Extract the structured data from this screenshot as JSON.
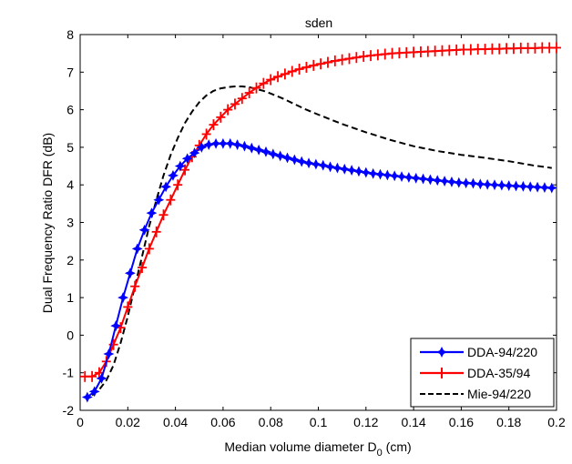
{
  "chart_data": {
    "type": "line",
    "title": "sden",
    "xlabel": "Median volume diameter D",
    "xlabel_subscript": "0",
    "xlabel_unit": " (cm)",
    "ylabel": "Dual Frequency Ratio DFR (dB)",
    "xlim": [
      0,
      0.2
    ],
    "ylim": [
      -2,
      8
    ],
    "xticks": [
      0,
      0.02,
      0.04,
      0.06,
      0.08,
      0.1,
      0.12,
      0.14,
      0.16,
      0.18,
      0.2
    ],
    "xtick_labels": [
      "0",
      "0.02",
      "0.04",
      "0.06",
      "0.08",
      "0.1",
      "0.12",
      "0.14",
      "0.16",
      "0.18",
      "0.2"
    ],
    "yticks": [
      -2,
      -1,
      0,
      1,
      2,
      3,
      4,
      5,
      6,
      7,
      8
    ],
    "ytick_labels": [
      "-2",
      "-1",
      "0",
      "1",
      "2",
      "3",
      "4",
      "5",
      "6",
      "7",
      "8"
    ],
    "grid": false,
    "legend_position": "bottom-right",
    "series": [
      {
        "name": "DDA-94/220",
        "color": "#0000ff",
        "style": "solid",
        "marker": "star",
        "x": [
          0.003,
          0.006,
          0.009,
          0.012,
          0.015,
          0.018,
          0.021,
          0.024,
          0.027,
          0.03,
          0.033,
          0.036,
          0.039,
          0.042,
          0.045,
          0.048,
          0.051,
          0.054,
          0.057,
          0.06,
          0.063,
          0.066,
          0.069,
          0.072,
          0.075,
          0.078,
          0.081,
          0.084,
          0.087,
          0.09,
          0.093,
          0.096,
          0.099,
          0.102,
          0.105,
          0.108,
          0.111,
          0.114,
          0.117,
          0.12,
          0.123,
          0.126,
          0.129,
          0.132,
          0.135,
          0.138,
          0.141,
          0.144,
          0.147,
          0.15,
          0.153,
          0.156,
          0.159,
          0.162,
          0.165,
          0.168,
          0.171,
          0.174,
          0.177,
          0.18,
          0.183,
          0.186,
          0.189,
          0.192,
          0.195,
          0.198
        ],
        "y": [
          -1.65,
          -1.5,
          -1.15,
          -0.5,
          0.25,
          1.0,
          1.65,
          2.3,
          2.8,
          3.25,
          3.6,
          3.95,
          4.25,
          4.5,
          4.7,
          4.85,
          5.0,
          5.07,
          5.1,
          5.1,
          5.1,
          5.07,
          5.03,
          4.98,
          4.93,
          4.88,
          4.82,
          4.77,
          4.72,
          4.67,
          4.62,
          4.58,
          4.55,
          4.52,
          4.48,
          4.45,
          4.42,
          4.39,
          4.36,
          4.33,
          4.3,
          4.28,
          4.26,
          4.24,
          4.22,
          4.2,
          4.18,
          4.16,
          4.14,
          4.12,
          4.1,
          4.08,
          4.06,
          4.05,
          4.04,
          4.02,
          4.01,
          4.0,
          3.99,
          3.98,
          3.97,
          3.96,
          3.95,
          3.94,
          3.93,
          3.92
        ]
      },
      {
        "name": "DDA-35/94",
        "color": "#ff0000",
        "style": "solid",
        "marker": "plus",
        "x": [
          0.002,
          0.005,
          0.008,
          0.011,
          0.014,
          0.017,
          0.02,
          0.023,
          0.026,
          0.029,
          0.032,
          0.035,
          0.038,
          0.041,
          0.044,
          0.047,
          0.05,
          0.053,
          0.056,
          0.059,
          0.062,
          0.065,
          0.068,
          0.071,
          0.074,
          0.077,
          0.08,
          0.083,
          0.086,
          0.089,
          0.092,
          0.095,
          0.098,
          0.101,
          0.104,
          0.107,
          0.11,
          0.113,
          0.116,
          0.119,
          0.122,
          0.125,
          0.128,
          0.131,
          0.134,
          0.137,
          0.14,
          0.143,
          0.146,
          0.149,
          0.152,
          0.155,
          0.158,
          0.161,
          0.164,
          0.167,
          0.17,
          0.173,
          0.176,
          0.179,
          0.182,
          0.185,
          0.188,
          0.191,
          0.194,
          0.197,
          0.2
        ],
        "y": [
          -1.1,
          -1.1,
          -1.0,
          -0.7,
          -0.25,
          0.2,
          0.75,
          1.3,
          1.8,
          2.3,
          2.75,
          3.2,
          3.6,
          4.0,
          4.4,
          4.75,
          5.05,
          5.35,
          5.6,
          5.8,
          6.0,
          6.15,
          6.3,
          6.45,
          6.58,
          6.7,
          6.8,
          6.88,
          6.95,
          7.02,
          7.08,
          7.13,
          7.18,
          7.22,
          7.26,
          7.3,
          7.33,
          7.36,
          7.39,
          7.42,
          7.44,
          7.46,
          7.48,
          7.5,
          7.51,
          7.52,
          7.53,
          7.54,
          7.55,
          7.56,
          7.57,
          7.58,
          7.59,
          7.6,
          7.6,
          7.61,
          7.61,
          7.62,
          7.62,
          7.63,
          7.63,
          7.64,
          7.64,
          7.64,
          7.65,
          7.65,
          7.65
        ]
      },
      {
        "name": "Mie-94/220",
        "color": "#000000",
        "style": "dashed",
        "marker": "none",
        "x": [
          0.005,
          0.008,
          0.011,
          0.014,
          0.017,
          0.02,
          0.023,
          0.026,
          0.029,
          0.032,
          0.035,
          0.038,
          0.041,
          0.044,
          0.047,
          0.05,
          0.053,
          0.056,
          0.059,
          0.062,
          0.065,
          0.068,
          0.071,
          0.074,
          0.077,
          0.08,
          0.085,
          0.09,
          0.095,
          0.1,
          0.11,
          0.12,
          0.13,
          0.14,
          0.15,
          0.16,
          0.17,
          0.18,
          0.19,
          0.198
        ],
        "y": [
          -1.6,
          -1.45,
          -1.2,
          -0.8,
          -0.2,
          0.5,
          1.3,
          2.1,
          2.9,
          3.6,
          4.25,
          4.8,
          5.25,
          5.65,
          5.95,
          6.2,
          6.38,
          6.5,
          6.57,
          6.6,
          6.62,
          6.62,
          6.6,
          6.55,
          6.5,
          6.43,
          6.3,
          6.15,
          6.0,
          5.87,
          5.62,
          5.4,
          5.2,
          5.03,
          4.9,
          4.8,
          4.72,
          4.63,
          4.52,
          4.45
        ]
      }
    ]
  }
}
